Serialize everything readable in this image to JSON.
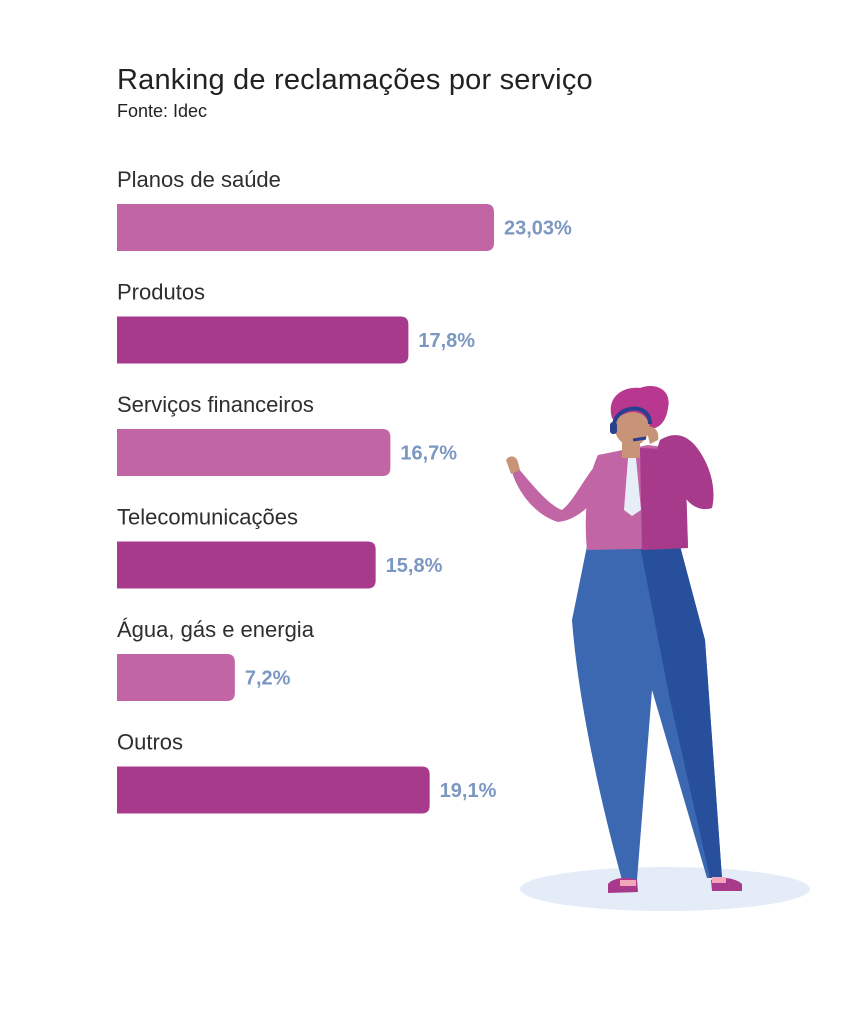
{
  "chart_data": {
    "type": "bar",
    "orientation": "horizontal",
    "title": "Ranking de reclamações por serviço",
    "subtitle": "Fonte: Idec",
    "categories": [
      "Planos de saúde",
      "Produtos",
      "Serviços financeiros",
      "Telecomunicações",
      "Água, gás e energia",
      "Outros"
    ],
    "values": [
      23.03,
      17.8,
      16.7,
      15.8,
      7.2,
      19.1
    ],
    "value_labels": [
      "23,03%",
      "17,8%",
      "16,7%",
      "15,8%",
      "7,2%",
      "19,1%"
    ],
    "unit": "%",
    "bar_colors": [
      "#c265a5",
      "#a83a8c",
      "#c265a5",
      "#a83a8c",
      "#c265a5",
      "#a83a8c"
    ],
    "value_label_color": "#7b97c2",
    "grid": false,
    "legend": false
  },
  "illustration": {
    "icon": "call-center-agent-icon",
    "colors": {
      "shirt": "#c265a5",
      "shirt_shadow": "#a83a8c",
      "pants": "#3b68b1",
      "pants_shadow": "#284f9b",
      "skin": "#c79477",
      "hair": "#b8378f",
      "headset": "#2b3f8f",
      "tie": "#e8eef8",
      "floor": "#e4ecf8"
    }
  }
}
